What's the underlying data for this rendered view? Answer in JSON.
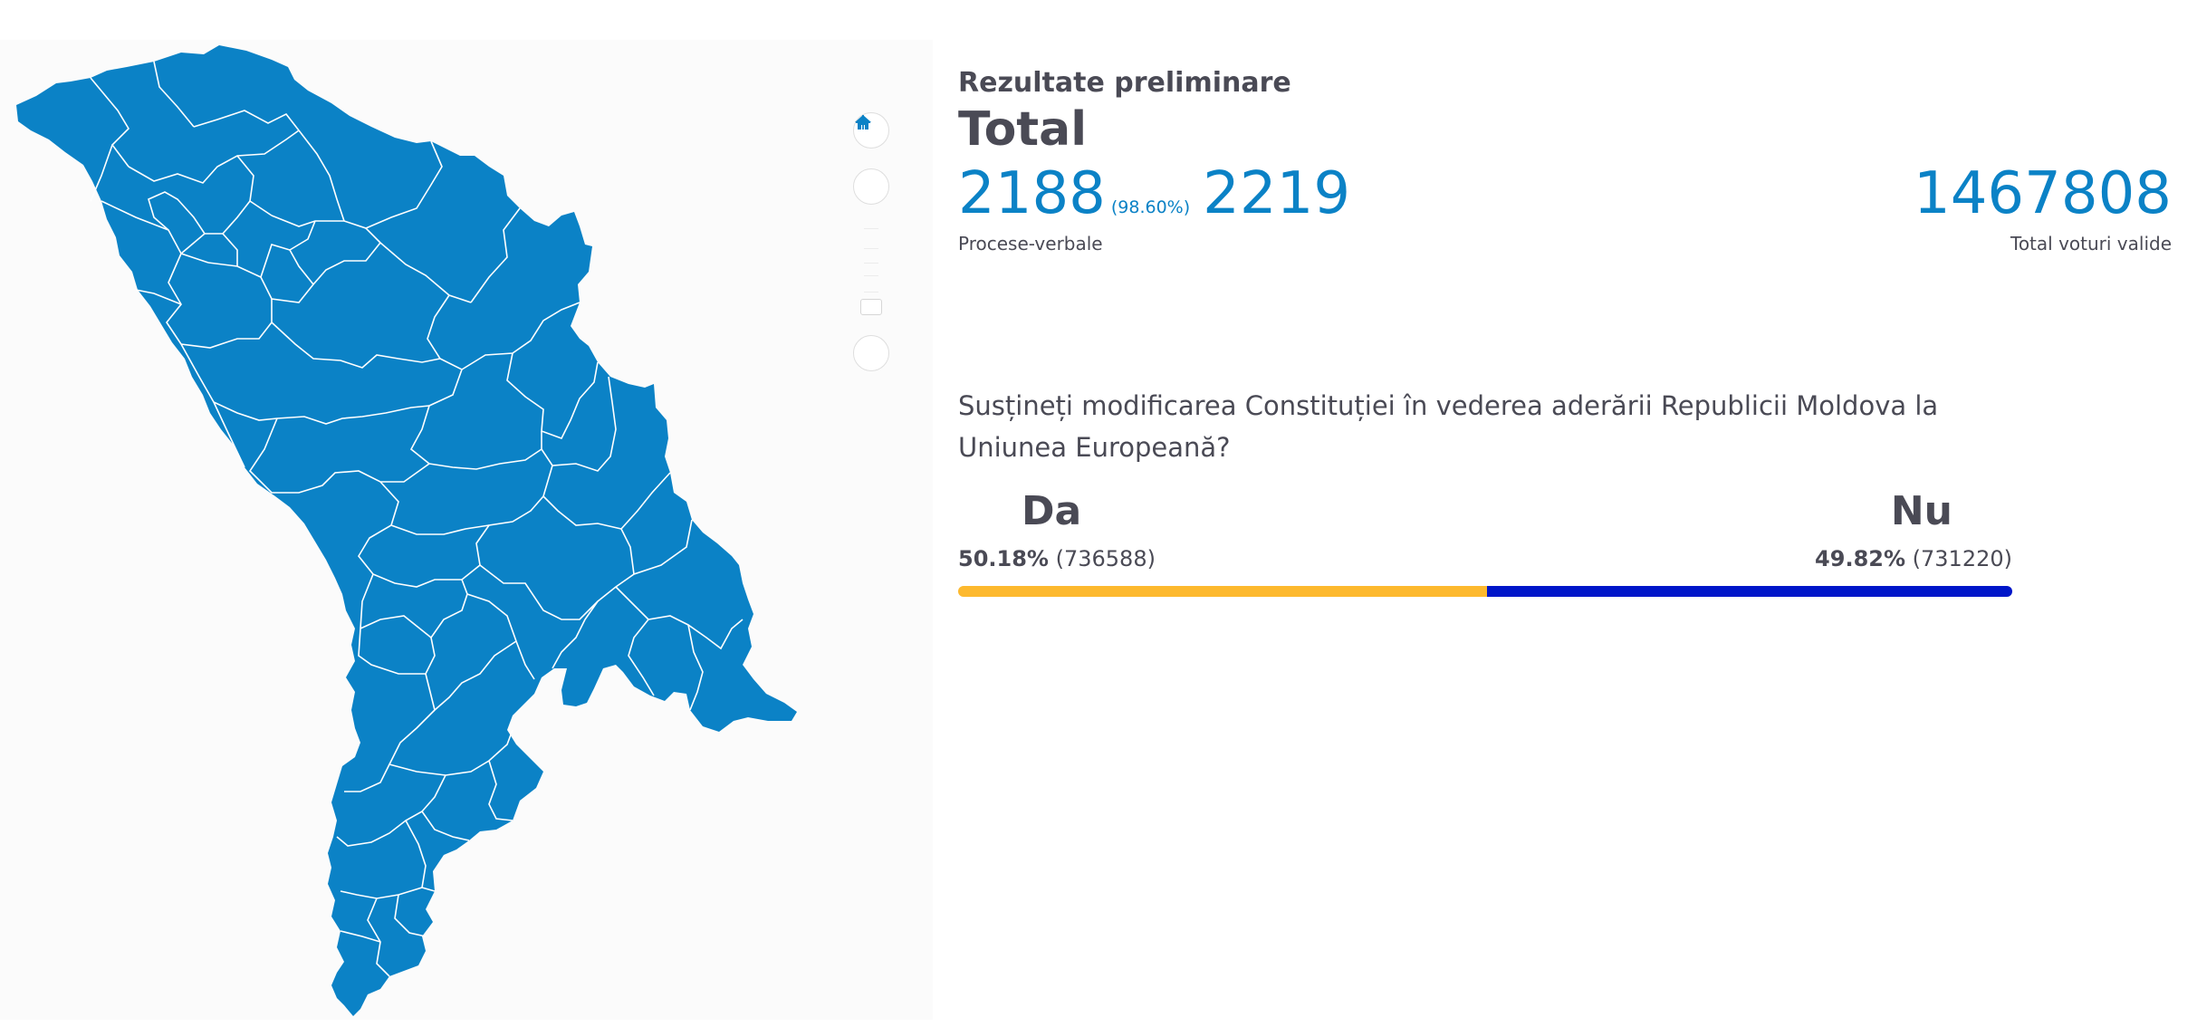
{
  "map": {
    "fill_color": "#0b82c6",
    "border_color": "#ffffff"
  },
  "zoom": {
    "home_icon": "home-icon",
    "zoom_in_icon": "plus-icon",
    "zoom_out_icon": "minus-icon"
  },
  "header": {
    "subtitle": "Rezultate preliminare",
    "title": "Total"
  },
  "stats": {
    "processed": "2188",
    "processed_pct": "(98.60%)",
    "total_reports": "2219",
    "reports_label": "Procese-verbale",
    "valid_votes": "1467808",
    "valid_votes_label": "Total voturi valide"
  },
  "question": "Susțineți modificarea Constituției în vederea aderării Republicii Moldova la Uniunea Europeană?",
  "options": {
    "yes": {
      "name": "Da",
      "pct": "50.18%",
      "count": "(736588)",
      "share": 50.18,
      "color": "#fdb92e"
    },
    "no": {
      "name": "Nu",
      "pct": "49.82%",
      "count": "(731220)",
      "share": 49.82,
      "color": "#0016c9"
    }
  }
}
